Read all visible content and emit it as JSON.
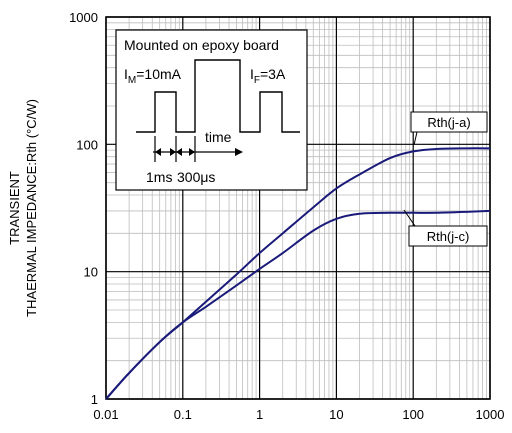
{
  "chart_data": {
    "type": "line",
    "ylabel_line1": "TRANSIENT",
    "ylabel_line2": "THAERMAL IMPEDANCE:Rth (°C/W)",
    "xscale": "log",
    "yscale": "log",
    "xlim": [
      0.01,
      1000
    ],
    "ylim": [
      1,
      1000
    ],
    "grid": true,
    "x_ticks": [
      "0.01",
      "0.1",
      "1",
      "10",
      "100",
      "1000"
    ],
    "y_ticks": [
      "1",
      "10",
      "100",
      "1000"
    ],
    "line_color": "#1a1a7a",
    "series": [
      {
        "name": "Rth(j-a)",
        "x": [
          0.01,
          0.02,
          0.05,
          0.1,
          0.2,
          0.5,
          1,
          2,
          5,
          10,
          20,
          50,
          100,
          200,
          500,
          1000
        ],
        "y": [
          1.0,
          1.6,
          2.8,
          4.0,
          5.8,
          9.5,
          14,
          20,
          32,
          45,
          58,
          78,
          88,
          92,
          93,
          93
        ]
      },
      {
        "name": "Rth(j-c)",
        "x": [
          0.01,
          0.02,
          0.05,
          0.1,
          0.2,
          0.5,
          1,
          2,
          5,
          10,
          20,
          50,
          100,
          200,
          500,
          1000
        ],
        "y": [
          1.0,
          1.6,
          2.8,
          4.0,
          5.3,
          7.8,
          10.5,
          14,
          21,
          26,
          28.5,
          29,
          29,
          29,
          29.5,
          30
        ]
      }
    ],
    "inset": {
      "title": "Mounted on epoxy board",
      "im_label": "I",
      "im_sub": "M",
      "im_value": "=10mA",
      "if_label": "I",
      "if_sub": "F",
      "if_value": "=3A",
      "time_label": "time",
      "dim1": "1ms",
      "dim2": "300μs"
    }
  }
}
